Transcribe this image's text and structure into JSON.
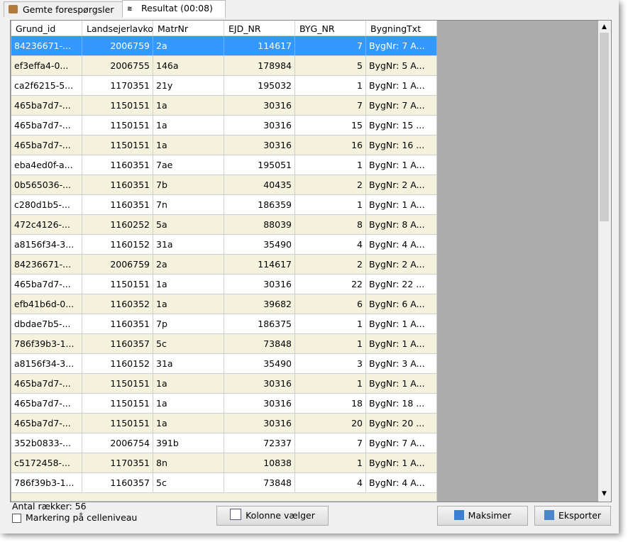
{
  "tabs": [
    "Gemte forespørgsler",
    "Resultat (00:08)"
  ],
  "table": {
    "columns": [
      "Grund_id",
      "Landsejerlavko",
      "MatrNr",
      "EJD_NR",
      "BYG_NR",
      "BygningTxt"
    ],
    "rows": [
      [
        "84236671-...",
        2006759,
        "2a",
        114617,
        7,
        "BygNr: 7 A..."
      ],
      [
        "ef3effa4-0...",
        2006755,
        "146a",
        178984,
        5,
        "BygNr: 5 A..."
      ],
      [
        "ca2f6215-5...",
        1170351,
        "21y",
        195032,
        1,
        "BygNr: 1 A..."
      ],
      [
        "465ba7d7-...",
        1150151,
        "1a",
        30316,
        7,
        "BygNr: 7 A..."
      ],
      [
        "465ba7d7-...",
        1150151,
        "1a",
        30316,
        15,
        "BygNr: 15 ..."
      ],
      [
        "465ba7d7-...",
        1150151,
        "1a",
        30316,
        16,
        "BygNr: 16 ..."
      ],
      [
        "eba4ed0f-a...",
        1160351,
        "7ae",
        195051,
        1,
        "BygNr: 1 A..."
      ],
      [
        "0b565036-...",
        1160351,
        "7b",
        40435,
        2,
        "BygNr: 2 A..."
      ],
      [
        "c280d1b5-...",
        1160351,
        "7n",
        186359,
        1,
        "BygNr: 1 A..."
      ],
      [
        "472c4126-...",
        1160252,
        "5a",
        88039,
        8,
        "BygNr: 8 A..."
      ],
      [
        "a8156f34-3...",
        1160152,
        "31a",
        35490,
        4,
        "BygNr: 4 A..."
      ],
      [
        "84236671-...",
        2006759,
        "2a",
        114617,
        2,
        "BygNr: 2 A..."
      ],
      [
        "465ba7d7-...",
        1150151,
        "1a",
        30316,
        22,
        "BygNr: 22 ..."
      ],
      [
        "efb41b6d-0...",
        1160352,
        "1a",
        39682,
        6,
        "BygNr: 6 A..."
      ],
      [
        "dbdae7b5-...",
        1160351,
        "7p",
        186375,
        1,
        "BygNr: 1 A..."
      ],
      [
        "786f39b3-1...",
        1160357,
        "5c",
        73848,
        1,
        "BygNr: 1 A..."
      ],
      [
        "a8156f34-3...",
        1160152,
        "31a",
        35490,
        3,
        "BygNr: 3 A..."
      ],
      [
        "465ba7d7-...",
        1150151,
        "1a",
        30316,
        1,
        "BygNr: 1 A..."
      ],
      [
        "465ba7d7-...",
        1150151,
        "1a",
        30316,
        18,
        "BygNr: 18 ..."
      ],
      [
        "465ba7d7-...",
        1150151,
        "1a",
        30316,
        20,
        "BygNr: 20 ..."
      ],
      [
        "352b0833-...",
        2006754,
        "391b",
        72337,
        7,
        "BygNr: 7 A..."
      ],
      [
        "c5172458-...",
        1170351,
        "8n",
        10838,
        1,
        "BygNr: 1 A..."
      ],
      [
        "786f39b3-1...",
        1160357,
        "5c",
        73848,
        4,
        "BygNr: 4 A..."
      ]
    ]
  },
  "footer": {
    "row_count": "Antal rækker: 56",
    "checkbox": "Markering på celleniveau"
  },
  "buttons": [
    "Kolonne vælger",
    "Maksimer",
    "Eksporter"
  ]
}
